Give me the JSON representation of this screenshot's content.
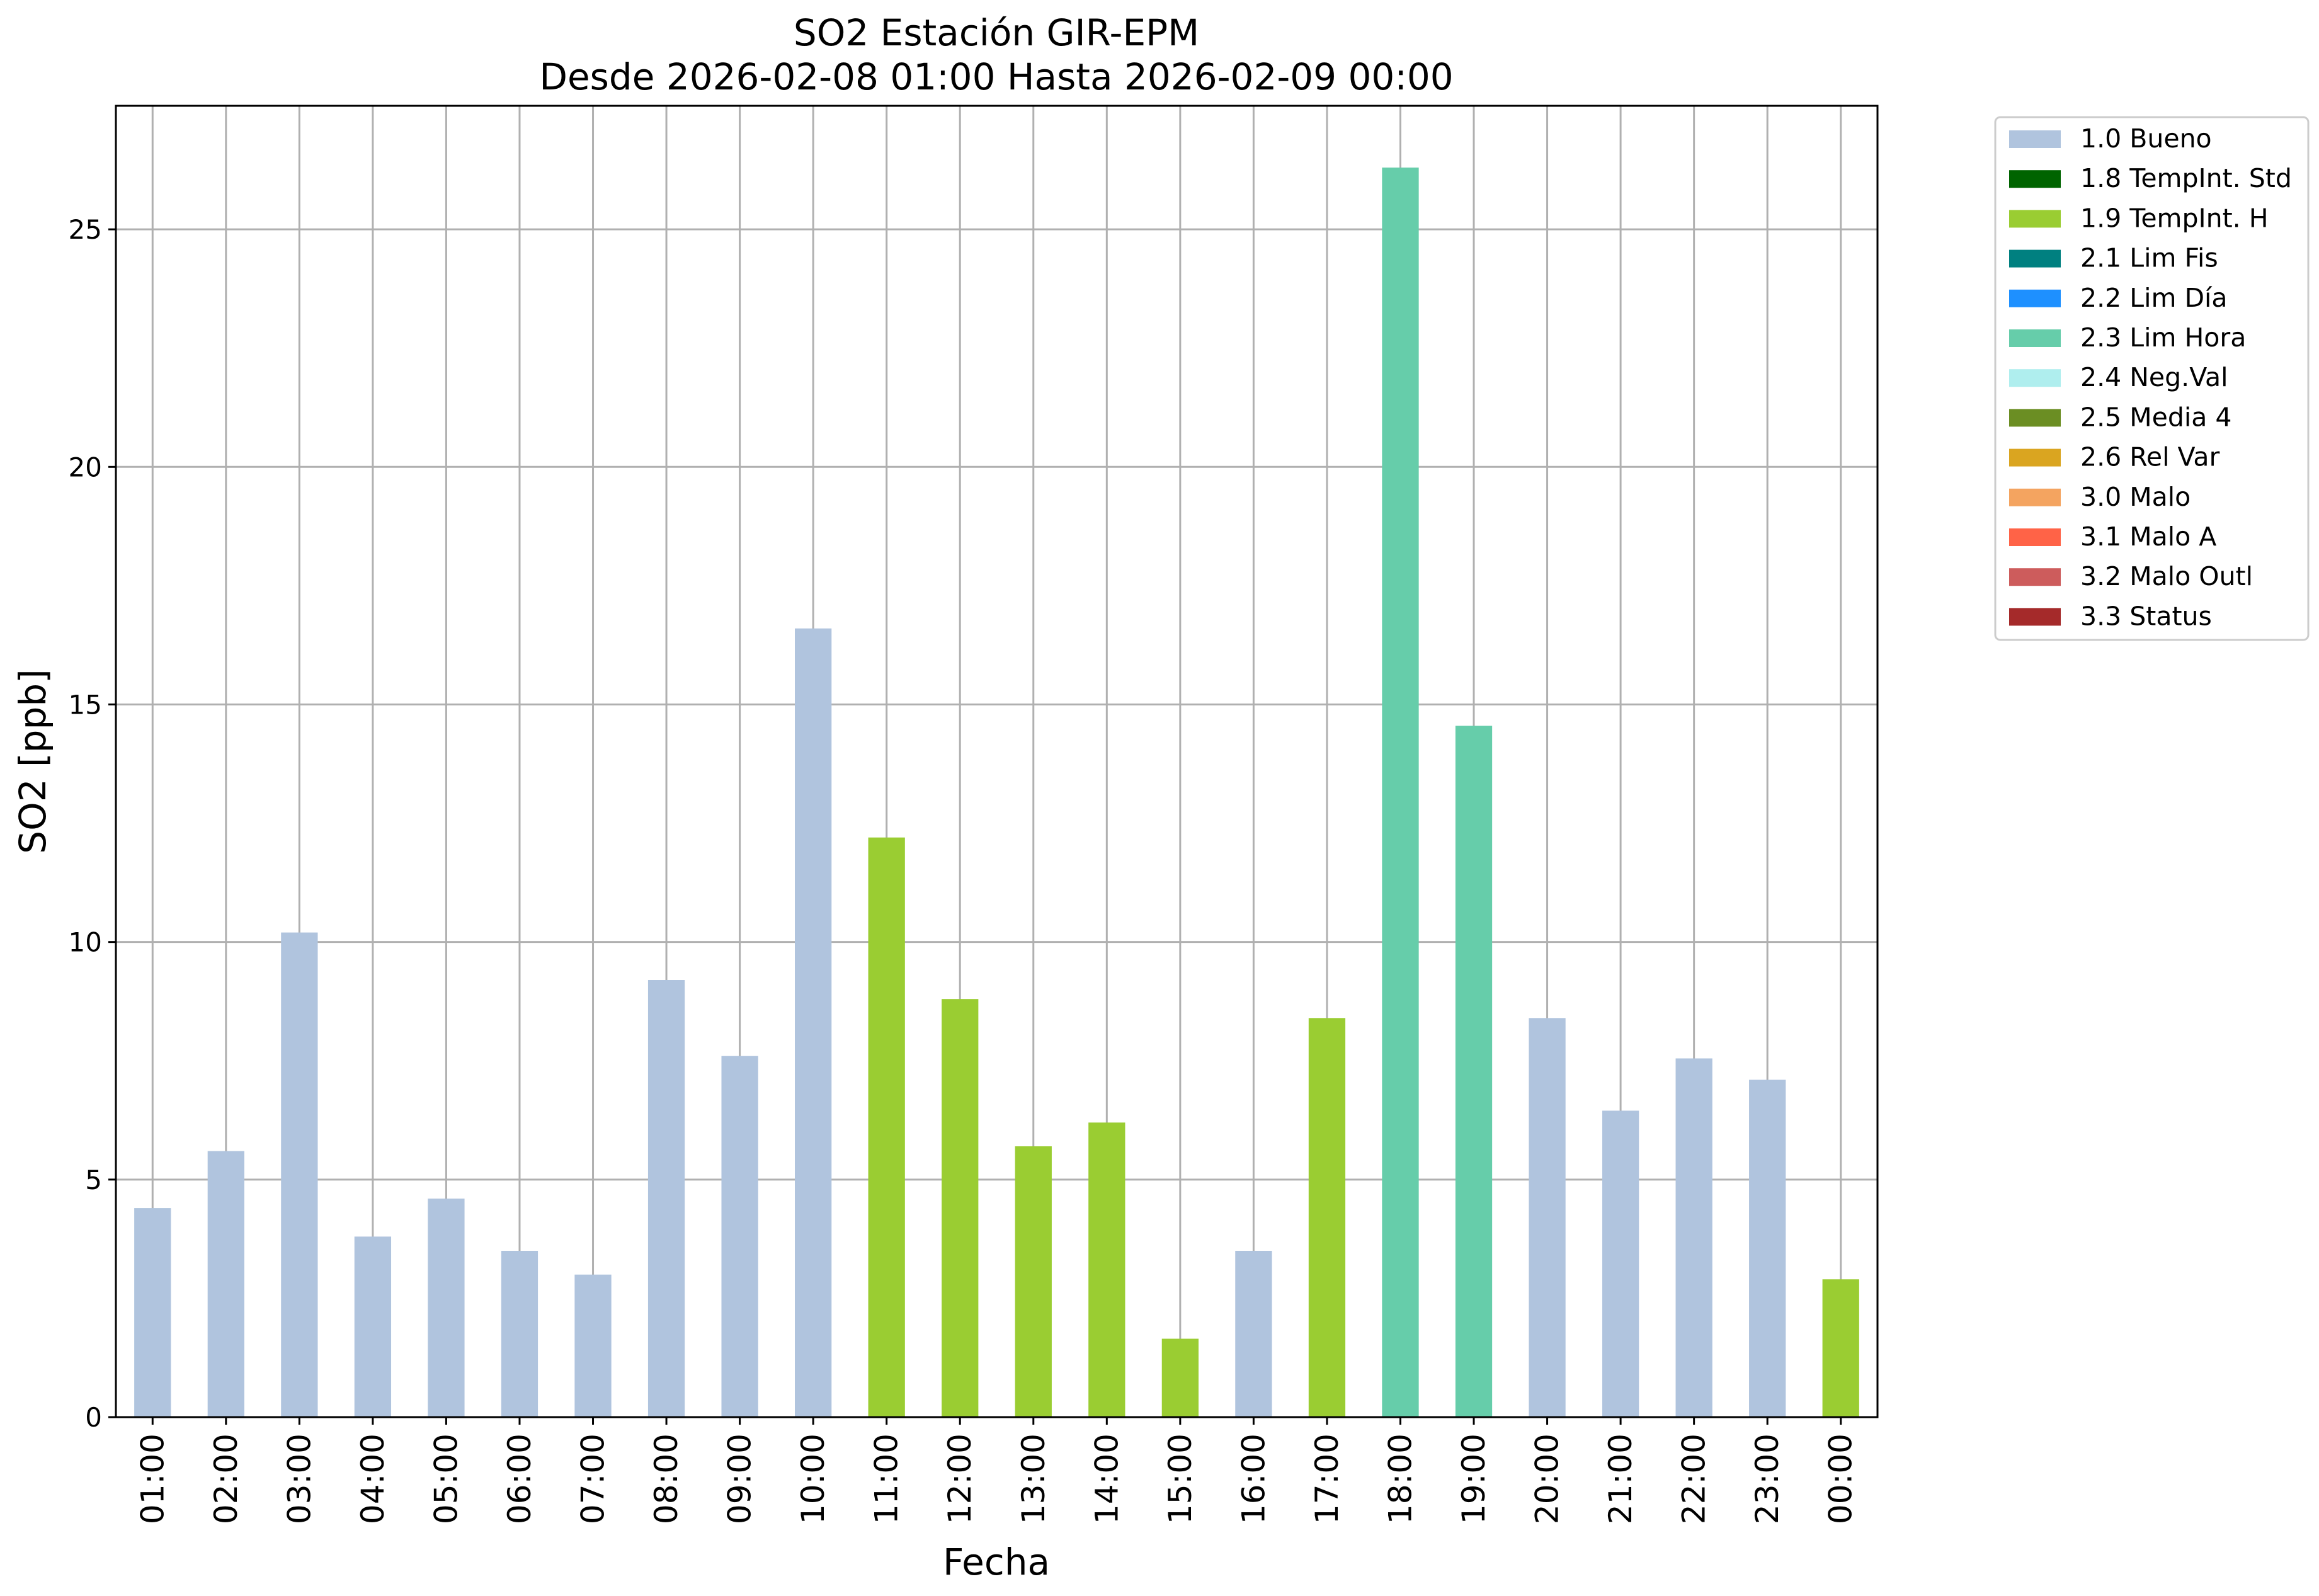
{
  "chart_data": {
    "type": "bar",
    "title": "SO2 Estación GIR-EPM",
    "subtitle": "Desde 2026-02-08 01:00 Hasta 2026-02-09 00:00",
    "xlabel": "Fecha",
    "ylabel": "SO2 [ppb]",
    "ylim": [
      0,
      27.6
    ],
    "yticks": [
      "0",
      "5",
      "10",
      "15",
      "20",
      "25"
    ],
    "grid": true,
    "legend_position": "outside-top-right",
    "categories": [
      "01:00",
      "02:00",
      "03:00",
      "04:00",
      "05:00",
      "06:00",
      "07:00",
      "08:00",
      "09:00",
      "10:00",
      "11:00",
      "12:00",
      "13:00",
      "14:00",
      "15:00",
      "16:00",
      "17:00",
      "18:00",
      "19:00",
      "20:00",
      "21:00",
      "22:00",
      "23:00",
      "00:00"
    ],
    "values": [
      4.4,
      5.6,
      10.2,
      3.8,
      4.6,
      3.5,
      3.0,
      9.2,
      7.6,
      16.6,
      12.2,
      8.8,
      5.7,
      6.2,
      1.65,
      3.5,
      8.4,
      26.3,
      14.55,
      8.4,
      6.45,
      7.55,
      7.1,
      2.9
    ],
    "flags": [
      "1.0 Bueno",
      "1.0 Bueno",
      "1.0 Bueno",
      "1.0 Bueno",
      "1.0 Bueno",
      "1.0 Bueno",
      "1.0 Bueno",
      "1.0 Bueno",
      "1.0 Bueno",
      "1.0 Bueno",
      "1.9 TempInt. H",
      "1.9 TempInt. H",
      "1.9 TempInt. H",
      "1.9 TempInt. H",
      "1.9 TempInt. H",
      "1.0 Bueno",
      "1.9 TempInt. H",
      "2.3 Lim Hora",
      "2.3 Lim Hora",
      "1.0 Bueno",
      "1.0 Bueno",
      "1.0 Bueno",
      "1.0 Bueno",
      "1.9 TempInt. H"
    ],
    "legend": [
      {
        "label": "1.0 Bueno",
        "color": "#b0c4de"
      },
      {
        "label": "1.8 TempInt. Std",
        "color": "#006400"
      },
      {
        "label": "1.9 TempInt. H",
        "color": "#9acd32"
      },
      {
        "label": "2.1 Lim Fis",
        "color": "#008080"
      },
      {
        "label": "2.2 Lim Día",
        "color": "#1e90ff"
      },
      {
        "label": "2.3 Lim Hora",
        "color": "#66cdaa"
      },
      {
        "label": "2.4 Neg.Val",
        "color": "#afeeee"
      },
      {
        "label": "2.5 Media 4",
        "color": "#6b8e23"
      },
      {
        "label": "2.6 Rel Var",
        "color": "#daa520"
      },
      {
        "label": "3.0 Malo",
        "color": "#f4a460"
      },
      {
        "label": "3.1 Malo A",
        "color": "#ff6347"
      },
      {
        "label": "3.2 Malo Outl",
        "color": "#cd5c5c"
      },
      {
        "label": "3.3 Status",
        "color": "#a52a2a"
      }
    ]
  }
}
